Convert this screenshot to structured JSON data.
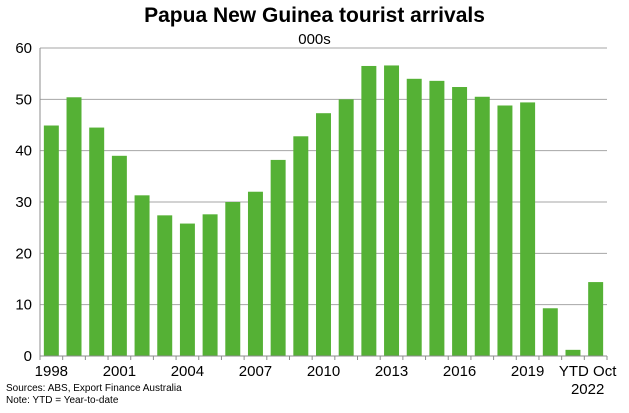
{
  "chart_data": {
    "type": "bar",
    "title": "Papua New Guinea tourist arrivals",
    "subtitle": "000s",
    "xlabel": "",
    "ylabel": "",
    "ylim": [
      0,
      60
    ],
    "yticks": [
      0,
      10,
      20,
      30,
      40,
      50,
      60
    ],
    "grid": true,
    "categories": [
      "1998",
      "1999",
      "2000",
      "2001",
      "2002",
      "2003",
      "2004",
      "2005",
      "2006",
      "2007",
      "2008",
      "2009",
      "2010",
      "2011",
      "2012",
      "2013",
      "2014",
      "2015",
      "2016",
      "2017",
      "2018",
      "2019",
      "2020",
      "2021",
      "YTD Oct 2022"
    ],
    "values": [
      44.9,
      50.4,
      44.5,
      39.0,
      31.3,
      27.4,
      25.8,
      27.6,
      30.0,
      32.0,
      38.2,
      42.8,
      47.3,
      50.0,
      56.5,
      56.6,
      54.0,
      53.6,
      52.4,
      50.5,
      48.8,
      49.4,
      9.3,
      1.2,
      14.4
    ],
    "xtick_labels": [
      {
        "index": 0,
        "text": "1998"
      },
      {
        "index": 3,
        "text": "2001"
      },
      {
        "index": 6,
        "text": "2004"
      },
      {
        "index": 9,
        "text": "2007"
      },
      {
        "index": 12,
        "text": "2010"
      },
      {
        "index": 15,
        "text": "2013"
      },
      {
        "index": 18,
        "text": "2016"
      },
      {
        "index": 21,
        "text": "2019"
      }
    ],
    "last_tick_label": [
      "YTD Oct",
      "2022"
    ],
    "bar_color": "#55b135",
    "grid_color": "#a6a6a6"
  },
  "notes": {
    "sources": "Sources: ABS, Export Finance Australia",
    "note": "Note: YTD = Year-to-date"
  }
}
